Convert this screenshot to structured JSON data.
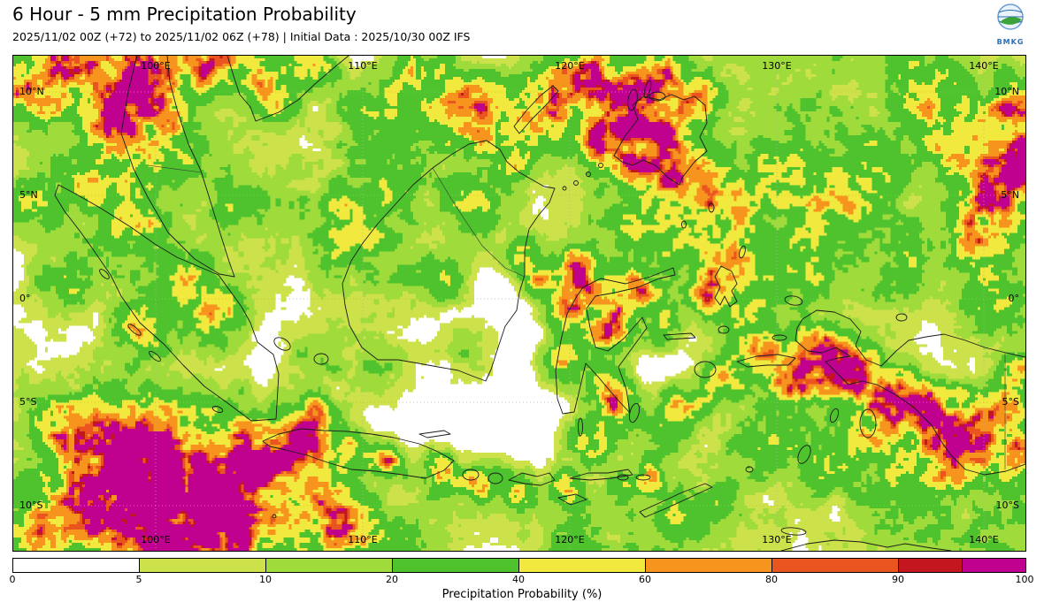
{
  "header": {
    "title": "6 Hour - 5 mm Precipitation Probability",
    "subtitle": "2025/11/02 00Z (+72) to 2025/11/02 06Z (+78) | Initial Data : 2025/10/30 00Z IFS",
    "logo_text": "BMKG"
  },
  "colors": {
    "logo_blue": "#2f6db5",
    "logo_green": "#3aa33a",
    "grid": "#b0b0b0",
    "coastline": "#1a1a1a"
  },
  "map": {
    "lat_labels": [
      {
        "text": "10°N",
        "f": 0.0732
      },
      {
        "text": "5°N",
        "f": 0.2821
      },
      {
        "text": "0°",
        "f": 0.4911
      },
      {
        "text": "5°S",
        "f": 0.7
      },
      {
        "text": "10°S",
        "f": 0.9089
      }
    ],
    "lon_labels": [
      {
        "text": "100°E",
        "f": 0.1407
      },
      {
        "text": "110°E",
        "f": 0.3453
      },
      {
        "text": "120°E",
        "f": 0.5498
      },
      {
        "text": "130°E",
        "f": 0.7544
      },
      {
        "text": "140°E",
        "f": 0.9589
      }
    ],
    "palette": [
      {
        "min": 5,
        "color": "#cde24a"
      },
      {
        "min": 10,
        "color": "#9fdb3a"
      },
      {
        "min": 20,
        "color": "#4fc32d"
      },
      {
        "min": 40,
        "color": "#f2e93e"
      },
      {
        "min": 60,
        "color": "#f7941e"
      },
      {
        "min": 80,
        "color": "#ea551f"
      },
      {
        "min": 90,
        "color": "#c3161f"
      },
      {
        "min": 95,
        "color": "#c0008f"
      }
    ],
    "blobs": [
      [
        0.17,
        0.86,
        0.1,
        92
      ],
      [
        0.21,
        0.93,
        0.07,
        100
      ],
      [
        0.12,
        0.8,
        0.065,
        82
      ],
      [
        0.25,
        0.82,
        0.055,
        72
      ],
      [
        0.08,
        0.9,
        0.06,
        85
      ],
      [
        0.3,
        0.9,
        0.05,
        68
      ],
      [
        0.05,
        0.76,
        0.05,
        58
      ],
      [
        0.33,
        0.97,
        0.05,
        62
      ],
      [
        0.14,
        0.97,
        0.06,
        88
      ],
      [
        0.02,
        0.95,
        0.05,
        70
      ],
      [
        0.065,
        0.0,
        0.055,
        88
      ],
      [
        0.13,
        0.02,
        0.05,
        78
      ],
      [
        0.02,
        0.07,
        0.04,
        68
      ],
      [
        0.19,
        0.01,
        0.04,
        80
      ],
      [
        0.24,
        0.04,
        0.035,
        62
      ],
      [
        0.1,
        0.1,
        0.04,
        60
      ],
      [
        0.295,
        0.02,
        0.035,
        58
      ],
      [
        0.26,
        0.09,
        0.03,
        48
      ],
      [
        0.4,
        0.04,
        0.05,
        42
      ],
      [
        0.46,
        0.1,
        0.045,
        40
      ],
      [
        0.35,
        0.12,
        0.04,
        28
      ],
      [
        0.565,
        0.03,
        0.04,
        78
      ],
      [
        0.6,
        0.1,
        0.045,
        82
      ],
      [
        0.635,
        0.16,
        0.04,
        95
      ],
      [
        0.655,
        0.23,
        0.035,
        85
      ],
      [
        0.61,
        0.22,
        0.03,
        68
      ],
      [
        0.68,
        0.08,
        0.03,
        62
      ],
      [
        0.53,
        0.12,
        0.04,
        52
      ],
      [
        0.7,
        0.28,
        0.03,
        72
      ],
      [
        0.64,
        0.05,
        0.035,
        70
      ],
      [
        0.58,
        0.17,
        0.03,
        60
      ],
      [
        0.975,
        0.28,
        0.055,
        95
      ],
      [
        0.93,
        0.17,
        0.045,
        72
      ],
      [
        0.99,
        0.1,
        0.04,
        68
      ],
      [
        0.955,
        0.38,
        0.04,
        68
      ],
      [
        0.9,
        0.06,
        0.055,
        45
      ],
      [
        0.85,
        0.24,
        0.05,
        38
      ],
      [
        1.0,
        0.2,
        0.04,
        80
      ],
      [
        0.8,
        0.31,
        0.055,
        33
      ],
      [
        0.88,
        0.41,
        0.05,
        33
      ],
      [
        0.97,
        0.5,
        0.04,
        42
      ],
      [
        0.76,
        0.22,
        0.04,
        30
      ],
      [
        0.8,
        0.6,
        0.035,
        72
      ],
      [
        0.835,
        0.65,
        0.035,
        82
      ],
      [
        0.87,
        0.69,
        0.035,
        90
      ],
      [
        0.91,
        0.72,
        0.035,
        95
      ],
      [
        0.945,
        0.75,
        0.035,
        100
      ],
      [
        0.98,
        0.72,
        0.03,
        88
      ],
      [
        0.99,
        0.81,
        0.03,
        78
      ],
      [
        0.93,
        0.81,
        0.04,
        68
      ],
      [
        0.86,
        0.77,
        0.04,
        58
      ],
      [
        0.79,
        0.65,
        0.04,
        52
      ],
      [
        1.0,
        0.64,
        0.03,
        72
      ],
      [
        0.735,
        0.6,
        0.03,
        68
      ],
      [
        0.7,
        0.66,
        0.03,
        62
      ],
      [
        0.66,
        0.71,
        0.028,
        52
      ],
      [
        0.765,
        0.66,
        0.025,
        58
      ],
      [
        0.705,
        0.4,
        0.03,
        62
      ],
      [
        0.72,
        0.34,
        0.025,
        68
      ],
      [
        0.69,
        0.47,
        0.03,
        58
      ],
      [
        0.565,
        0.465,
        0.028,
        85
      ],
      [
        0.6,
        0.5,
        0.028,
        80
      ],
      [
        0.545,
        0.52,
        0.024,
        68
      ],
      [
        0.585,
        0.56,
        0.028,
        74
      ],
      [
        0.62,
        0.47,
        0.024,
        62
      ],
      [
        0.55,
        0.42,
        0.028,
        58
      ],
      [
        0.64,
        0.55,
        0.024,
        58
      ],
      [
        0.545,
        0.62,
        0.028,
        62
      ],
      [
        0.585,
        0.67,
        0.028,
        68
      ],
      [
        0.6,
        0.72,
        0.028,
        60
      ],
      [
        0.5,
        0.4,
        0.024,
        58
      ],
      [
        0.52,
        0.46,
        0.02,
        52
      ],
      [
        0.46,
        0.3,
        0.05,
        38
      ],
      [
        0.38,
        0.25,
        0.05,
        33
      ],
      [
        0.35,
        0.4,
        0.05,
        28
      ],
      [
        0.42,
        0.45,
        0.04,
        33
      ],
      [
        0.33,
        0.33,
        0.04,
        28
      ],
      [
        0.44,
        0.12,
        0.05,
        42
      ],
      [
        0.49,
        0.2,
        0.04,
        46
      ],
      [
        0.52,
        0.08,
        0.04,
        42
      ],
      [
        0.08,
        0.25,
        0.05,
        38
      ],
      [
        0.12,
        0.35,
        0.05,
        42
      ],
      [
        0.17,
        0.45,
        0.04,
        38
      ],
      [
        0.2,
        0.52,
        0.04,
        44
      ],
      [
        0.13,
        0.55,
        0.04,
        48
      ],
      [
        0.05,
        0.45,
        0.04,
        33
      ],
      [
        0.02,
        0.3,
        0.04,
        38
      ],
      [
        0.1,
        0.15,
        0.05,
        46
      ],
      [
        0.16,
        0.2,
        0.04,
        42
      ],
      [
        0.22,
        0.3,
        0.035,
        33
      ],
      [
        0.115,
        0.075,
        0.03,
        62
      ],
      [
        0.15,
        0.12,
        0.025,
        52
      ],
      [
        0.285,
        0.77,
        0.028,
        80
      ],
      [
        0.325,
        0.8,
        0.028,
        70
      ],
      [
        0.37,
        0.82,
        0.024,
        64
      ],
      [
        0.42,
        0.84,
        0.024,
        58
      ],
      [
        0.3,
        0.72,
        0.028,
        54
      ],
      [
        0.26,
        0.8,
        0.028,
        60
      ],
      [
        0.46,
        0.86,
        0.026,
        54
      ],
      [
        0.5,
        0.88,
        0.024,
        58
      ],
      [
        0.55,
        0.87,
        0.022,
        52
      ],
      [
        0.6,
        0.88,
        0.02,
        48
      ],
      [
        0.63,
        0.86,
        0.02,
        52
      ],
      [
        0.66,
        0.92,
        0.028,
        44
      ],
      [
        0.7,
        0.9,
        0.024,
        48
      ],
      [
        0.4,
        0.97,
        0.05,
        28
      ],
      [
        0.55,
        0.97,
        0.04,
        24
      ],
      [
        0.36,
        0.62,
        0.05,
        20
      ],
      [
        0.45,
        0.6,
        0.04,
        18
      ],
      [
        0.3,
        0.6,
        0.04,
        22
      ],
      [
        0.74,
        0.78,
        0.04,
        33
      ],
      [
        0.8,
        0.83,
        0.04,
        38
      ],
      [
        0.88,
        0.88,
        0.04,
        33
      ],
      [
        0.72,
        0.5,
        0.04,
        33
      ],
      [
        0.78,
        0.45,
        0.035,
        28
      ],
      [
        0.62,
        0.33,
        0.04,
        38
      ],
      [
        0.66,
        0.36,
        0.03,
        33
      ],
      [
        0.36,
        0.14,
        0.04,
        16
      ],
      [
        0.57,
        0.78,
        0.03,
        40
      ],
      [
        0.64,
        0.78,
        0.03,
        35
      ]
    ]
  },
  "colorbar": {
    "label": "Precipitation Probability (%)",
    "ticks": [
      {
        "text": "0",
        "f": 0
      },
      {
        "text": "5",
        "f": 0.125
      },
      {
        "text": "10",
        "f": 0.25
      },
      {
        "text": "20",
        "f": 0.375
      },
      {
        "text": "40",
        "f": 0.5
      },
      {
        "text": "60",
        "f": 0.625
      },
      {
        "text": "80",
        "f": 0.75
      },
      {
        "text": "90",
        "f": 0.875
      },
      {
        "text": "100",
        "f": 1
      }
    ],
    "segments": [
      {
        "color": "#ffffff",
        "w": 0.125
      },
      {
        "color": "#cde24a",
        "w": 0.125
      },
      {
        "color": "#9fdb3a",
        "w": 0.125
      },
      {
        "color": "#4fc32d",
        "w": 0.125
      },
      {
        "color": "#f2e93e",
        "w": 0.125
      },
      {
        "color": "#f7941e",
        "w": 0.125
      },
      {
        "color": "#ea551f",
        "w": 0.125
      },
      {
        "color": "#c3161f",
        "w": 0.0625
      },
      {
        "color": "#c0008f",
        "w": 0.0625
      }
    ]
  }
}
